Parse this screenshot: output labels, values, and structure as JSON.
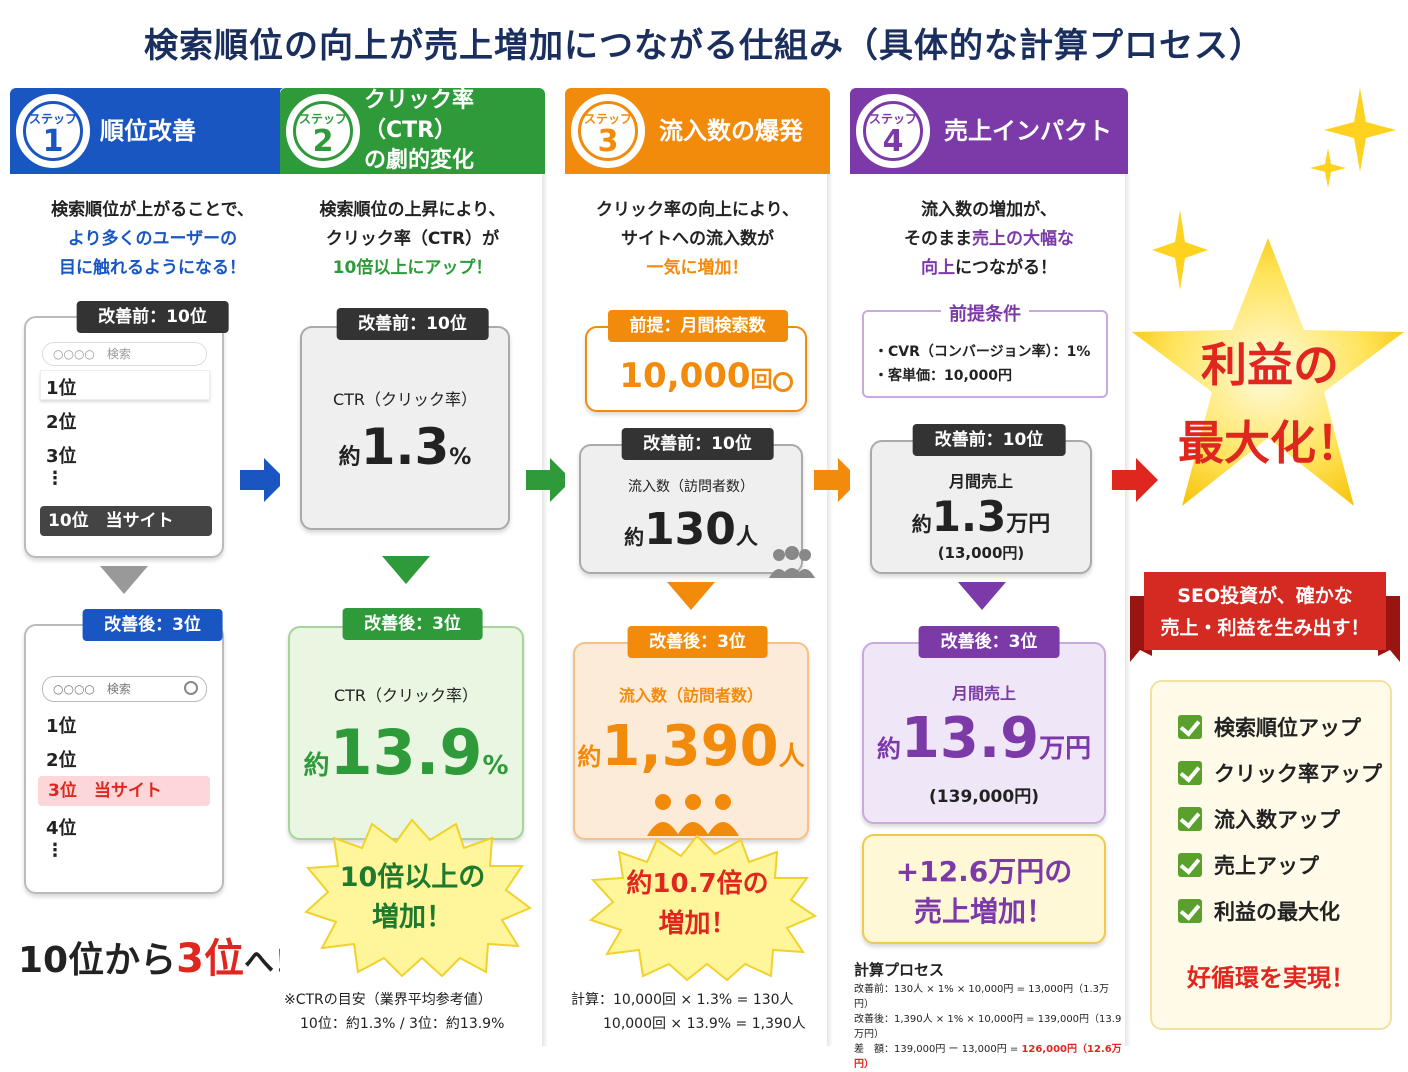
{
  "title": "検索順位の向上が売上増加につながる仕組み（具体的な計算プロセス）",
  "colors": {
    "blue": "#1a56c2",
    "green": "#2e9a3a",
    "orange": "#f28b0c",
    "purple": "#7b3aa8",
    "red": "#e0271f",
    "star": "#ffd21f"
  },
  "step_label": "ステップ",
  "step1": {
    "num": "1",
    "title": "順位改善",
    "desc": [
      "検索順位が上がることで、",
      "より多くのユーザーの",
      "目に触れるようになる！"
    ],
    "before_pill": "改善前：10位",
    "before_search": "○○○○　検索",
    "before_ranks": [
      "1位",
      "2位",
      "3位",
      "⋮",
      "10位　当サイト"
    ],
    "after_pill": "改善後：3位",
    "after_search": "○○○○　検索",
    "after_ranks": [
      "1位",
      "2位",
      "3位　当サイト",
      "4位",
      "⋮"
    ],
    "summary_a": "10位から",
    "summary_b": "3位",
    "summary_c": "へ！"
  },
  "step2": {
    "num": "2",
    "title_line1": "クリック率（CTR）",
    "title_line2": "の劇的変化",
    "desc": [
      "検索順位の上昇により、",
      "クリック率（CTR）が",
      "10倍以上にアップ！"
    ],
    "before_pill": "改善前：10位",
    "before_label": "CTR（クリック率）",
    "before_pre": "約",
    "before_value": "1.3",
    "before_unit": "%",
    "after_pill": "改善後：3位",
    "after_label": "CTR（クリック率）",
    "after_pre": "約",
    "after_value": "13.9",
    "after_unit": "%",
    "burst_line1": "10倍以上の",
    "burst_line2": "増加！",
    "note1": "※CTRの目安（業界平均参考値）",
    "note2": "10位：約1.3% / 3位：約13.9%"
  },
  "step3": {
    "num": "3",
    "title": "流入数の爆発",
    "desc": [
      "クリック率の向上により、",
      "サイトへの流入数が",
      "一気に増加！"
    ],
    "premise_pill": "前提：月間検索数",
    "premise_value": "10,000",
    "premise_unit": "回",
    "before_pill": "改善前：10位",
    "before_label": "流入数（訪問者数）",
    "before_pre": "約",
    "before_value": "130",
    "before_unit": "人",
    "after_pill": "改善後：3位",
    "after_label": "流入数（訪問者数）",
    "after_pre": "約",
    "after_value": "1,390",
    "after_unit": "人",
    "burst_line1": "約10.7倍の",
    "burst_line2": "増加！",
    "calc1": "計算：10,000回 × 1.3% = 130人",
    "calc2": "10,000回 × 13.9% = 1,390人"
  },
  "step4": {
    "num": "4",
    "title": "売上インパクト",
    "desc": [
      "流入数の増加が、",
      "そのまま売上の大幅な",
      "向上につながる！"
    ],
    "cond_title": "前提条件",
    "cond1": "・CVR（コンバージョン率）：1%",
    "cond2": "・客単価：10,000円",
    "before_pill": "改善前：10位",
    "before_label": "月間売上",
    "before_pre": "約",
    "before_value": "1.3",
    "before_unit": "万円",
    "before_sub": "(13,000円)",
    "after_pill": "改善後：3位",
    "after_label": "月間売上",
    "after_pre": "約",
    "after_value": "13.9",
    "after_unit": "万円",
    "after_sub": "(139,000円)",
    "result_line1": "+12.6万円の",
    "result_line2": "売上増加！",
    "process_title": "計算プロセス",
    "process1": "改善前：130人 × 1% × 10,000円 = 13,000円（1.3万円）",
    "process2": "改善後：1,390人 × 1% × 10,000円 = 139,000円（13.9万円）",
    "process3a": "差　額：139,000円 ー 13,000円 = ",
    "process3b": "126,000円（12.6万円）"
  },
  "final": {
    "star_line1": "利益の",
    "star_line2": "最大化！",
    "ribbon_line1": "SEO投資が、確かな",
    "ribbon_line2": "売上・利益を生み出す！",
    "checks": [
      "検索順位アップ",
      "クリック率アップ",
      "流入数アップ",
      "売上アップ",
      "利益の最大化"
    ],
    "slogan": "好循環を実現！"
  }
}
